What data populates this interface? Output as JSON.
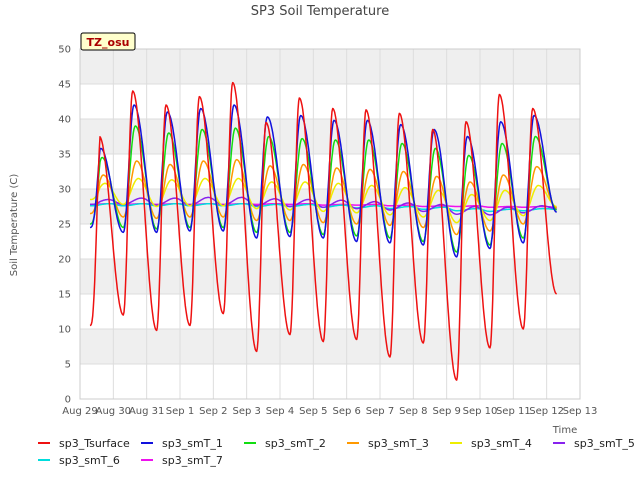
{
  "chart_data": {
    "type": "line",
    "title": "SP3 Soil Temperature",
    "xlabel": "Time",
    "ylabel": "Soil Temperature (C)",
    "badge": "TZ_osu",
    "ylim": [
      0,
      50
    ],
    "yticks": [
      0,
      5,
      10,
      15,
      20,
      25,
      30,
      35,
      40,
      45,
      50
    ],
    "xlim": [
      0,
      15
    ],
    "xticks": [
      {
        "x": 0,
        "label": "Aug 29"
      },
      {
        "x": 1,
        "label": "Aug 30"
      },
      {
        "x": 2,
        "label": "Aug 31"
      },
      {
        "x": 3,
        "label": "Sep 1"
      },
      {
        "x": 4,
        "label": "Sep 2"
      },
      {
        "x": 5,
        "label": "Sep 3"
      },
      {
        "x": 6,
        "label": "Sep 4"
      },
      {
        "x": 7,
        "label": "Sep 5"
      },
      {
        "x": 8,
        "label": "Sep 6"
      },
      {
        "x": 9,
        "label": "Sep 7"
      },
      {
        "x": 10,
        "label": "Sep 8"
      },
      {
        "x": 11,
        "label": "Sep 9"
      },
      {
        "x": 12,
        "label": "Sep 10"
      },
      {
        "x": 13,
        "label": "Sep 11"
      },
      {
        "x": 14,
        "label": "Sep 12"
      },
      {
        "x": 15,
        "label": "Sep 13"
      }
    ],
    "x_start": 0.3,
    "x_end": 14.3,
    "series": [
      {
        "name": "sp3_Tsurface",
        "color": "#ee1111",
        "peak_hour": 0.58,
        "max": [
          37.5,
          44,
          42,
          43.2,
          45.2,
          39.5,
          43,
          41.5,
          41.3,
          40.8,
          38.5,
          39.6,
          43.5,
          41.5
        ],
        "min": [
          10.5,
          12,
          9.8,
          10.5,
          12.2,
          6.8,
          9.2,
          8.2,
          8.5,
          6.0,
          8.0,
          2.7,
          7.3,
          10.0,
          15.0
        ]
      },
      {
        "name": "sp3_smT_1",
        "color": "#1111dd",
        "peak_hour": 0.62,
        "max": [
          35.8,
          42,
          41,
          41.5,
          42,
          40.3,
          40.5,
          39.8,
          39.8,
          39.2,
          38.5,
          37.5,
          39.6,
          40.5
        ],
        "min": [
          24.5,
          23.8,
          23.8,
          24,
          24,
          23,
          23.2,
          23,
          22.5,
          22.3,
          22,
          20.3,
          21.5,
          22.3,
          26.7
        ]
      },
      {
        "name": "sp3_smT_2",
        "color": "#11dd11",
        "peak_hour": 0.66,
        "max": [
          34.5,
          39,
          38,
          38.5,
          38.7,
          37.5,
          37.2,
          37,
          37,
          36.5,
          35.8,
          34.8,
          36.5,
          37.5
        ],
        "min": [
          25,
          24.5,
          24.3,
          24.5,
          24.5,
          23.8,
          23.8,
          23.5,
          23.3,
          23,
          22.5,
          21,
          22,
          23,
          27
        ]
      },
      {
        "name": "sp3_smT_3",
        "color": "#ff9900",
        "peak_hour": 0.7,
        "max": [
          32,
          34,
          33.5,
          34,
          34.2,
          33.3,
          33.5,
          33,
          32.8,
          32.5,
          31.8,
          31,
          32,
          33.2
        ],
        "min": [
          26.5,
          26,
          25.8,
          26,
          26,
          25.5,
          25.5,
          25.2,
          25,
          24.8,
          24.5,
          23.5,
          24,
          25,
          27.3
        ]
      },
      {
        "name": "sp3_smT_4",
        "color": "#eeee00",
        "peak_hour": 0.75,
        "max": [
          30.8,
          31.5,
          31.3,
          31.5,
          31.5,
          31,
          31,
          30.8,
          30.5,
          30.2,
          29.8,
          29.2,
          29.8,
          30.5
        ],
        "min": [
          28.5,
          27.8,
          27.5,
          27.6,
          27.6,
          27.2,
          27,
          26.8,
          26.6,
          26.3,
          26,
          25.2,
          25.5,
          26.2,
          27.5
        ]
      },
      {
        "name": "sp3_smT_5",
        "color": "#8822ee",
        "peak_hour": 0.85,
        "max": [
          28.5,
          28.7,
          28.7,
          28.8,
          28.8,
          28.6,
          28.5,
          28.4,
          28.2,
          28,
          27.8,
          27.5,
          27.4,
          27.6
        ],
        "min": [
          27.8,
          27.8,
          27.7,
          27.7,
          27.7,
          27.6,
          27.5,
          27.4,
          27.2,
          27,
          26.8,
          26.4,
          26.3,
          26.6,
          27.2
        ]
      },
      {
        "name": "sp3_smT_6",
        "color": "#00dddd",
        "peak_hour": 0.9,
        "max": [
          27.9,
          27.9,
          27.9,
          27.9,
          27.9,
          27.8,
          27.8,
          27.7,
          27.6,
          27.5,
          27.4,
          27.2,
          27.1,
          27.2
        ],
        "min": [
          27.6,
          27.6,
          27.6,
          27.6,
          27.6,
          27.5,
          27.5,
          27.4,
          27.3,
          27.2,
          27.1,
          26.9,
          26.8,
          26.9,
          27.1
        ]
      },
      {
        "name": "sp3_smT_7",
        "color": "#ee11ee",
        "peak_hour": 0.9,
        "max": [
          27.9,
          27.9,
          27.9,
          27.9,
          27.9,
          27.9,
          27.9,
          27.8,
          27.8,
          27.7,
          27.6,
          27.6,
          27.5,
          27.5
        ],
        "min": [
          27.8,
          27.8,
          27.8,
          27.8,
          27.8,
          27.8,
          27.8,
          27.7,
          27.7,
          27.6,
          27.5,
          27.5,
          27.4,
          27.4,
          27.4
        ]
      }
    ]
  },
  "legend": {
    "items": [
      "sp3_Tsurface",
      "sp3_smT_1",
      "sp3_smT_2",
      "sp3_smT_3",
      "sp3_smT_4",
      "sp3_smT_5",
      "sp3_smT_6",
      "sp3_smT_7"
    ],
    "colors": [
      "#ee1111",
      "#1111dd",
      "#11dd11",
      "#ff9900",
      "#eeee00",
      "#8822ee",
      "#00dddd",
      "#ee11ee"
    ]
  }
}
